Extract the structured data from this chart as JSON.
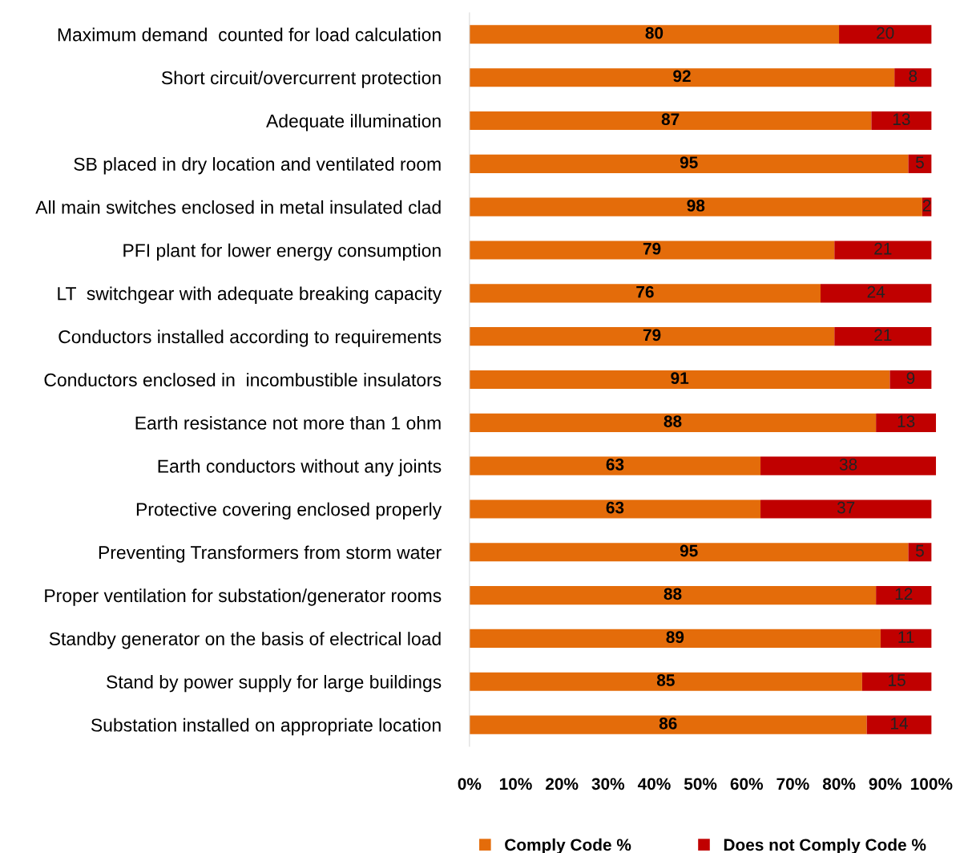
{
  "chart_data": {
    "type": "bar",
    "orientation": "horizontal",
    "stacked": true,
    "categories": [
      "Maximum demand  counted for load calculation",
      "Short circuit/overcurrent protection",
      "Adequate illumination",
      "SB placed in dry location and ventilated room",
      "All main switches enclosed in metal insulated clad",
      "PFI plant for lower energy consumption",
      "LT  switchgear with adequate breaking capacity",
      "Conductors installed according to requirements",
      "Conductors enclosed in  incombustible insulators",
      "Earth resistance not more than 1 ohm",
      "Earth conductors without any joints",
      "Protective covering enclosed properly",
      "Preventing Transformers from storm water",
      "Proper ventilation for substation/generator rooms",
      "Standby generator on the basis of electrical load",
      "Stand by power supply for large buildings",
      "Substation installed on appropriate location"
    ],
    "series": [
      {
        "name": "Comply Code %",
        "color": "#e46c0a",
        "values": [
          80,
          92,
          87,
          95,
          98,
          79,
          76,
          79,
          91,
          88,
          63,
          63,
          95,
          88,
          89,
          85,
          86
        ]
      },
      {
        "name": "Does not Comply Code %",
        "color": "#c00000",
        "values": [
          20,
          8,
          13,
          5,
          2,
          21,
          24,
          21,
          9,
          13,
          38,
          37,
          5,
          12,
          11,
          15,
          14
        ]
      }
    ],
    "xlim": [
      0,
      101
    ],
    "xticks": [
      {
        "value": 0,
        "label": "0%"
      },
      {
        "value": 10,
        "label": "10%"
      },
      {
        "value": 20,
        "label": "20%"
      },
      {
        "value": 30,
        "label": "30%"
      },
      {
        "value": 40,
        "label": "40%"
      },
      {
        "value": 50,
        "label": "50%"
      },
      {
        "value": 60,
        "label": "60%"
      },
      {
        "value": 70,
        "label": "70%"
      },
      {
        "value": 80,
        "label": "80%"
      },
      {
        "value": 90,
        "label": "90%"
      },
      {
        "value": 100,
        "label": "100%"
      }
    ],
    "data_labels": true,
    "grid": false,
    "legend": "bottom"
  }
}
